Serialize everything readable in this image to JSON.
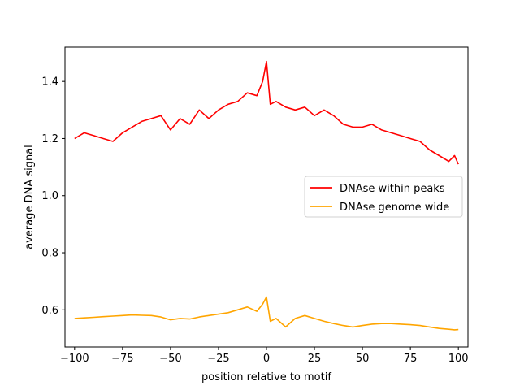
{
  "chart_data": {
    "type": "line",
    "title": "",
    "xlabel": "position relative to motif",
    "ylabel": "average DNA signal",
    "xlim": [
      -105,
      105
    ],
    "ylim": [
      0.47,
      1.52
    ],
    "xticks": [
      -100,
      -75,
      -50,
      -25,
      0,
      25,
      50,
      75,
      100
    ],
    "xtick_labels": [
      "−100",
      "−75",
      "−50",
      "−25",
      "0",
      "25",
      "50",
      "75",
      "100"
    ],
    "yticks": [
      0.6,
      0.8,
      1.0,
      1.2,
      1.4
    ],
    "ytick_labels": [
      "0.6",
      "0.8",
      "1.0",
      "1.2",
      "1.4"
    ],
    "grid": false,
    "legend_position": "center-right",
    "series": [
      {
        "name": "DNAse within peaks",
        "color": "#ff0000",
        "x": [
          -100,
          -95,
          -90,
          -85,
          -80,
          -75,
          -70,
          -65,
          -60,
          -55,
          -50,
          -45,
          -40,
          -35,
          -30,
          -25,
          -20,
          -15,
          -10,
          -5,
          -2,
          0,
          2,
          5,
          10,
          15,
          20,
          25,
          30,
          35,
          40,
          45,
          50,
          55,
          60,
          65,
          70,
          75,
          80,
          85,
          90,
          95,
          98,
          100
        ],
        "values": [
          1.2,
          1.22,
          1.21,
          1.2,
          1.19,
          1.22,
          1.24,
          1.26,
          1.27,
          1.28,
          1.23,
          1.27,
          1.25,
          1.3,
          1.27,
          1.3,
          1.32,
          1.33,
          1.36,
          1.35,
          1.4,
          1.47,
          1.32,
          1.33,
          1.31,
          1.3,
          1.31,
          1.28,
          1.3,
          1.28,
          1.25,
          1.24,
          1.24,
          1.25,
          1.23,
          1.22,
          1.21,
          1.2,
          1.19,
          1.16,
          1.14,
          1.12,
          1.14,
          1.11
        ]
      },
      {
        "name": "DNAse genome wide",
        "color": "#ffa500",
        "x": [
          -100,
          -95,
          -90,
          -85,
          -80,
          -75,
          -70,
          -65,
          -60,
          -55,
          -50,
          -45,
          -40,
          -35,
          -30,
          -25,
          -20,
          -15,
          -10,
          -5,
          -2,
          0,
          2,
          5,
          10,
          15,
          20,
          25,
          30,
          35,
          40,
          45,
          50,
          55,
          60,
          65,
          70,
          75,
          80,
          85,
          90,
          95,
          98,
          100
        ],
        "values": [
          0.57,
          0.572,
          0.574,
          0.576,
          0.578,
          0.58,
          0.582,
          0.581,
          0.58,
          0.575,
          0.565,
          0.57,
          0.568,
          0.575,
          0.58,
          0.585,
          0.59,
          0.6,
          0.61,
          0.595,
          0.62,
          0.645,
          0.56,
          0.57,
          0.54,
          0.57,
          0.58,
          0.57,
          0.56,
          0.552,
          0.545,
          0.54,
          0.545,
          0.55,
          0.552,
          0.552,
          0.55,
          0.548,
          0.545,
          0.54,
          0.535,
          0.532,
          0.53,
          0.531
        ]
      }
    ]
  }
}
